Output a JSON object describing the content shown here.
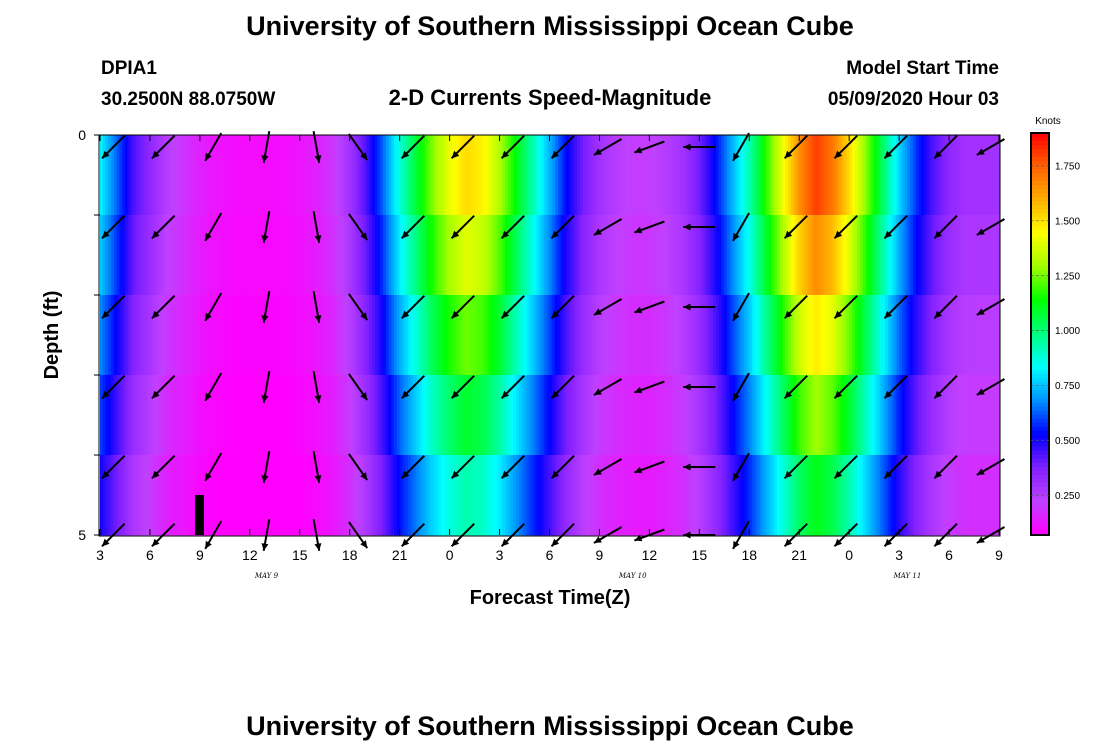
{
  "title": "University of Southern Mississippi Ocean Cube",
  "title_repeat": "University of Southern Mississippi Ocean Cube",
  "station": "DPIA1",
  "coordinates": "30.2500N 88.0750W",
  "subtitle": "2-D Currents Speed-Magnitude",
  "model_label": "Model Start Time",
  "model_time": "05/09/2020 Hour 03",
  "chart_data": {
    "type": "heatmap",
    "title": "2-D Currents Speed-Magnitude",
    "xlabel": "Forecast Time(Z)",
    "ylabel": "Depth (ft)",
    "x_tick_labels": [
      "3",
      "6",
      "9",
      "12",
      "15",
      "18",
      "21",
      "0",
      "3",
      "6",
      "9",
      "12",
      "15",
      "18",
      "21",
      "0",
      "3",
      "6",
      "9"
    ],
    "x_hours": [
      0,
      3,
      6,
      9,
      12,
      15,
      18,
      21,
      24,
      27,
      30,
      33,
      36,
      39,
      42,
      45,
      48,
      51,
      54
    ],
    "date_labels": [
      {
        "text": "MAY 9",
        "hour": 10
      },
      {
        "text": "MAY 10",
        "hour": 32
      },
      {
        "text": "MAY 11",
        "hour": 48.5
      }
    ],
    "y_tick_labels": [
      "0",
      "5"
    ],
    "ylim": [
      0,
      5
    ],
    "colorbar": {
      "label": "Knots",
      "range": [
        0.07,
        1.9
      ],
      "ticks": [
        "0.250",
        "0.500",
        "0.750",
        "1.000",
        "1.250",
        "1.500",
        "1.750"
      ],
      "tick_values": [
        0.25,
        0.5,
        0.75,
        1.0,
        1.25,
        1.5,
        1.75
      ],
      "colors": [
        "#ff00ff",
        "#c040ff",
        "#8020ff",
        "#0000ff",
        "#0090ff",
        "#00ffff",
        "#00ff80",
        "#00ff00",
        "#a0ff00",
        "#ffff00",
        "#ffb000",
        "#ff6000",
        "#ff0000"
      ]
    },
    "depth_levels": [
      0,
      1,
      2,
      3,
      4,
      5
    ],
    "speed_profile": {
      "hours": [
        0,
        1,
        2,
        3,
        4,
        5,
        6,
        7,
        8,
        9,
        10,
        11,
        12,
        13,
        14,
        15,
        16,
        17,
        18,
        19,
        20,
        21,
        22,
        23,
        24,
        25,
        26,
        27,
        28,
        29,
        30,
        31,
        32,
        33,
        34,
        35,
        36,
        37,
        38,
        39,
        40,
        41,
        42,
        43,
        44,
        45,
        46,
        47,
        48,
        49,
        50,
        51,
        52,
        53,
        54
      ],
      "values": [
        0.85,
        0.65,
        0.45,
        0.35,
        0.25,
        0.2,
        0.15,
        0.12,
        0.1,
        0.1,
        0.1,
        0.1,
        0.12,
        0.15,
        0.2,
        0.3,
        0.45,
        0.65,
        0.9,
        1.1,
        1.3,
        1.45,
        1.55,
        1.5,
        1.35,
        1.15,
        0.95,
        0.75,
        0.55,
        0.4,
        0.3,
        0.25,
        0.22,
        0.22,
        0.25,
        0.3,
        0.4,
        0.55,
        0.75,
        0.95,
        1.2,
        1.45,
        1.7,
        1.85,
        1.75,
        1.55,
        1.3,
        1.05,
        0.8,
        0.6,
        0.45,
        0.35,
        0.3,
        0.3,
        0.3
      ]
    },
    "depth_factor": [
      1.0,
      0.95,
      0.85,
      0.75,
      0.65,
      0.55
    ],
    "vectors": {
      "hours": [
        0.8,
        3.8,
        6.8,
        10.0,
        13.0,
        15.5,
        18.8,
        21.8,
        24.8,
        27.8,
        30.5,
        33.0,
        36.0,
        38.5,
        41.8,
        44.8,
        47.8,
        50.8,
        53.5
      ],
      "directions_deg": [
        135,
        135,
        120,
        100,
        80,
        55,
        135,
        135,
        135,
        135,
        150,
        160,
        180,
        120,
        135,
        135,
        135,
        135,
        150
      ],
      "depths": [
        0.15,
        1.15,
        2.15,
        3.15,
        4.15,
        5.0
      ]
    }
  }
}
